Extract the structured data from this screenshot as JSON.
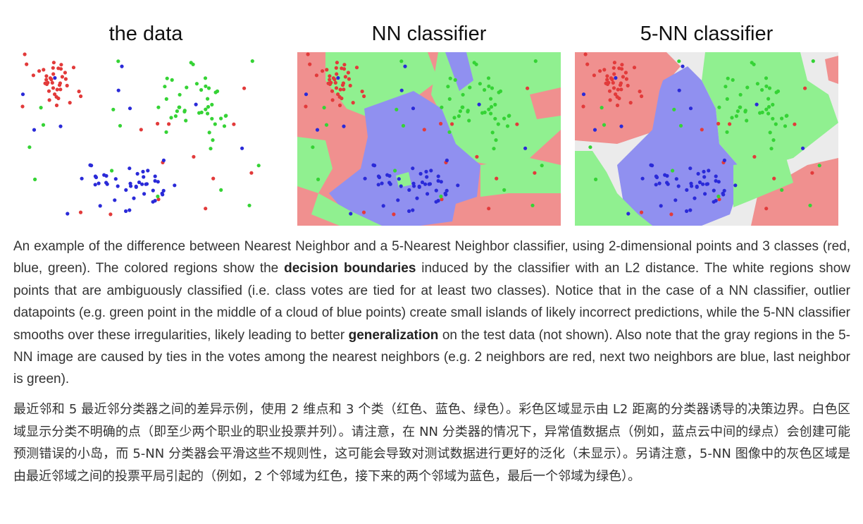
{
  "panels": [
    {
      "title": "the data"
    },
    {
      "title": "NN classifier"
    },
    {
      "title": "5-NN classifier"
    }
  ],
  "colors": {
    "red_point": "#e23a3a",
    "green_point": "#35d335",
    "blue_point": "#2a2ad8",
    "red_region": "#f0908f",
    "green_region": "#90f090",
    "blue_region": "#9090f0",
    "gray_region": "#ebebeb"
  },
  "caption_en": {
    "part1": "An example of the difference between Nearest Neighbor and a 5-Nearest Neighbor classifier, using 2-dimensional points and 3 classes (red, blue, green). The colored regions show the ",
    "term1": "decision boundaries",
    "part2": " induced by the classifier with an L2 distance. The white regions show points that are ambiguously classified (i.e. class votes are tied for at least two classes). Notice that in the case of a NN classifier, outlier datapoints (e.g. green point in the middle of a cloud of blue points) create small islands of likely incorrect predictions, while the 5-NN classifier smooths over these irregularities, likely leading to better ",
    "term2": "generalization",
    "part3": " on the test data (not shown). Also note that the gray regions in the 5-NN image are caused by ties in the votes among the nearest neighbors (e.g. 2 neighbors are red, next two neighbors are blue, last neighbor is green)."
  },
  "caption_zh": "最近邻和 5 最近邻分类器之间的差异示例，使用 2 维点和 3 个类（红色、蓝色、绿色）。彩色区域显示由 L2 距离的分类器诱导的决策边界。白色区域显示分类不明确的点（即至少两个职业的职业投票并列）。请注意，在 NN 分类器的情况下，异常值数据点（例如，蓝点云中间的绿点）会创建可能预测错误的小岛，而 5-NN 分类器会平滑这些不规则性，这可能会导致对测试数据进行更好的泛化（未显示）。另请注意，5-NN 图像中的灰色区域是由最近邻域之间的投票平局引起的（例如，2 个邻域为红色，接下来的两个邻域为蓝色，最后一个邻域为绿色）。"
}
